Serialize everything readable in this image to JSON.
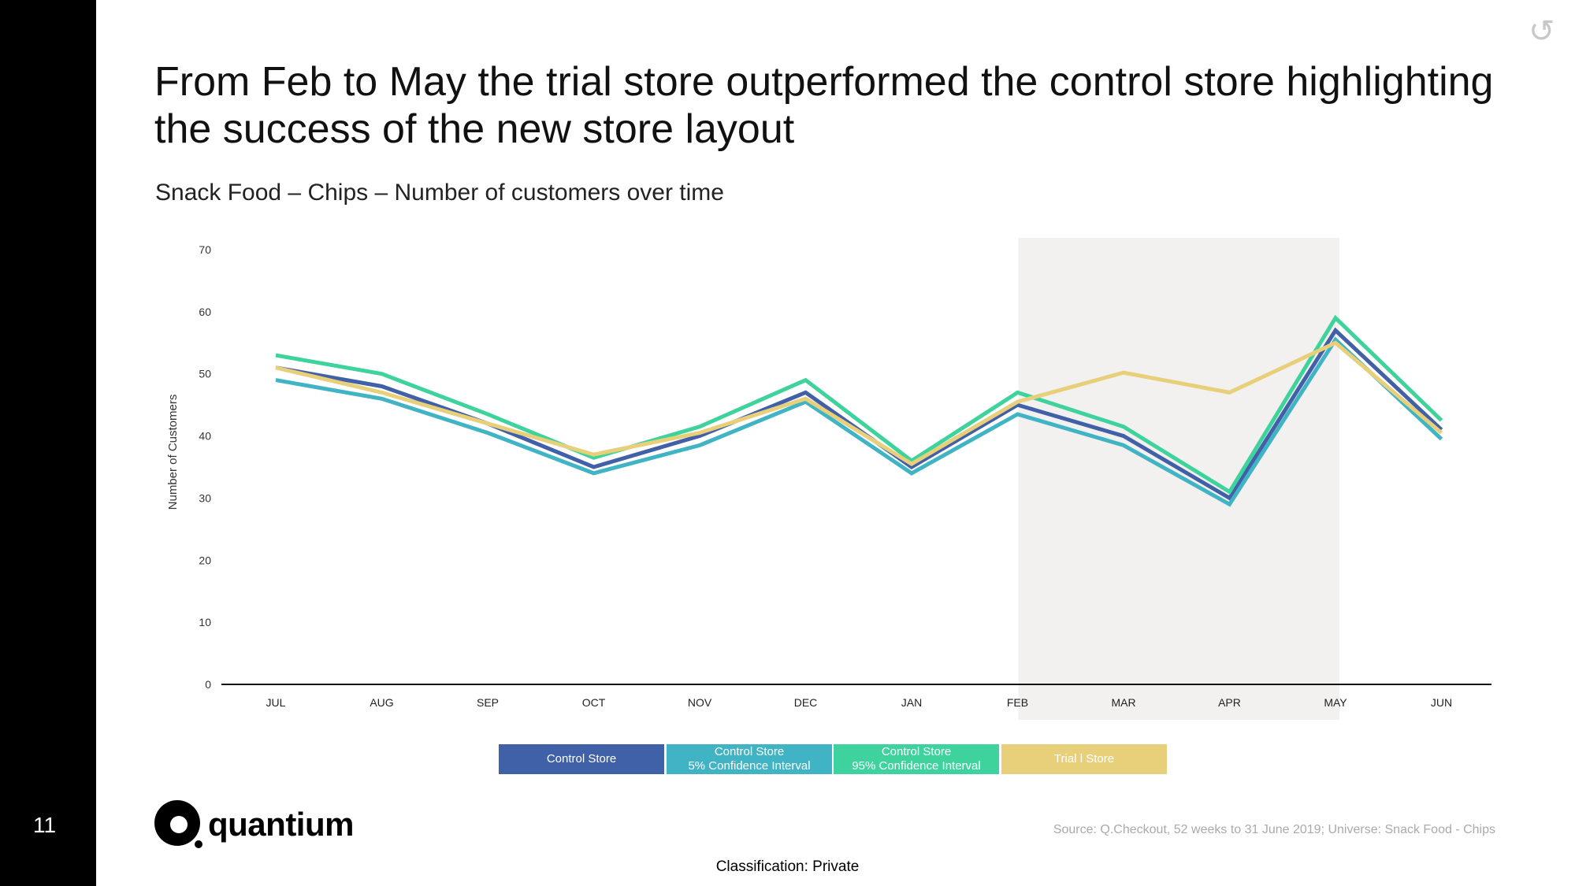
{
  "slide": {
    "page_number": "11",
    "title": "From Feb to May the trial store outperformed the control store highlighting the success of the new store layout",
    "subtitle": "Snack Food – Chips – Number of customers over time",
    "source": "Source: Q.Checkout, 52 weeks to 31 June 2019; Universe: Snack Food - Chips",
    "classification": "Classification: Private",
    "logo_text": "quantium",
    "refresh_icon": "refresh-icon"
  },
  "legend": {
    "control_store": "Control Store",
    "ci5_line1": "Control Store",
    "ci5_line2": "5% Confidence Interval",
    "ci95_line1": "Control Store",
    "ci95_line2": "95% Confidence Interval",
    "trial_store": "Trial l Store"
  },
  "chart_data": {
    "type": "line",
    "ylabel": "Number of Customers",
    "xlabel": "",
    "ylim": [
      0,
      70
    ],
    "yticks": [
      0,
      10,
      20,
      30,
      40,
      50,
      60,
      70
    ],
    "categories": [
      "JUL",
      "AUG",
      "SEP",
      "OCT",
      "NOV",
      "DEC",
      "JAN",
      "FEB",
      "MAR",
      "APR",
      "MAY",
      "JUN"
    ],
    "highlight_range": [
      "FEB",
      "MAY"
    ],
    "highlight_color": "#f2f1ef",
    "series": [
      {
        "name": "Control Store",
        "color": "#4160a8",
        "values": [
          51,
          48,
          42,
          35,
          40,
          47,
          35,
          45,
          40,
          30,
          57,
          41
        ]
      },
      {
        "name": "Control Store 5% Confidence Interval",
        "color": "#40b4c4",
        "values": [
          49,
          46,
          40.5,
          34,
          38.5,
          45.5,
          34,
          43.5,
          38.5,
          29,
          55.5,
          39.5
        ]
      },
      {
        "name": "Control Store 95% Confidence Interval",
        "color": "#3ed39c",
        "values": [
          53,
          50,
          43.5,
          36.5,
          41.5,
          49,
          36,
          47,
          41.5,
          31,
          59,
          42.5
        ]
      },
      {
        "name": "Trial l Store",
        "color": "#e8cf7a",
        "values": [
          51,
          47,
          42,
          37,
          40.5,
          46,
          35.5,
          45.5,
          50.2,
          47,
          55,
          40.5
        ]
      }
    ]
  }
}
